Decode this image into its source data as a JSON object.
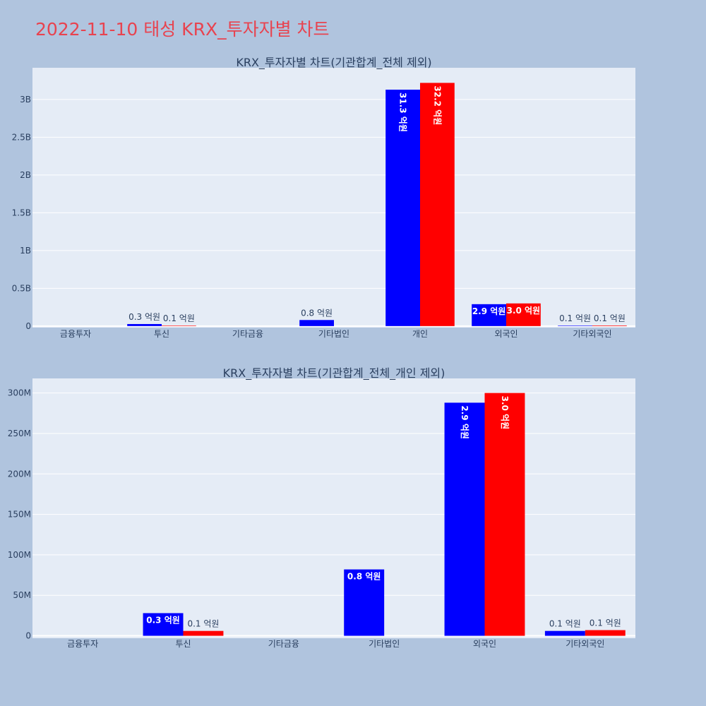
{
  "title": "2022-11-10 태성 KRX_투자자별 차트",
  "colors": {
    "background": "#b0c4de",
    "plot_bg": "#e5ecf6",
    "title": "#e8434f",
    "series_1": "#0000ff",
    "series_2": "#ff0000"
  },
  "chart_data": [
    {
      "type": "bar",
      "title": "KRX_투자자별 차트(기관합계_전체 제외)",
      "categories": [
        "금융투자",
        "투신",
        "기타금융",
        "기타법인",
        "개인",
        "외국인",
        "기타외국인"
      ],
      "series": [
        {
          "color": "#0000ff",
          "values": [
            0,
            27000000,
            0,
            80000000,
            3130000000,
            290000000,
            6000000
          ],
          "labels": [
            "",
            "0.3 억원",
            "",
            "0.8 억원",
            "31.3 억원",
            "2.9 억원",
            "0.1 억원"
          ]
        },
        {
          "color": "#ff0000",
          "values": [
            0,
            6000000,
            0,
            0,
            3220000000,
            300000000,
            7000000
          ],
          "labels": [
            "",
            "0.1 억원",
            "",
            "",
            "32.2 억원",
            "3.0 억원",
            "0.1 억원"
          ]
        }
      ],
      "yticks": [
        0,
        500000000,
        1000000000,
        1500000000,
        2000000000,
        2500000000,
        3000000000
      ],
      "ytick_labels": [
        "0",
        "0.5B",
        "1B",
        "1.5B",
        "2B",
        "2.5B",
        "3B"
      ],
      "ylim": [
        -20000000,
        3420000000
      ],
      "grid": true
    },
    {
      "type": "bar",
      "title": "KRX_투자자별 차트(기관합계_전체_개인 제외)",
      "categories": [
        "금융투자",
        "투신",
        "기타금융",
        "기타법인",
        "외국인",
        "기타외국인"
      ],
      "series": [
        {
          "color": "#0000ff",
          "values": [
            0,
            28000000,
            0,
            82000000,
            288000000,
            6000000
          ],
          "labels": [
            "",
            "0.3 억원",
            "",
            "0.8 억원",
            "2.9 억원",
            "0.1 억원"
          ]
        },
        {
          "color": "#ff0000",
          "values": [
            0,
            6000000,
            0,
            0,
            300000000,
            7000000
          ],
          "labels": [
            "",
            "0.1 억원",
            "",
            "",
            "3.0 억원",
            "0.1 억원"
          ]
        }
      ],
      "yticks": [
        0,
        50000000,
        100000000,
        150000000,
        200000000,
        250000000,
        300000000
      ],
      "ytick_labels": [
        "0",
        "50M",
        "100M",
        "150M",
        "200M",
        "250M",
        "300M"
      ],
      "ylim": [
        -3000000,
        318000000
      ],
      "grid": true
    }
  ]
}
